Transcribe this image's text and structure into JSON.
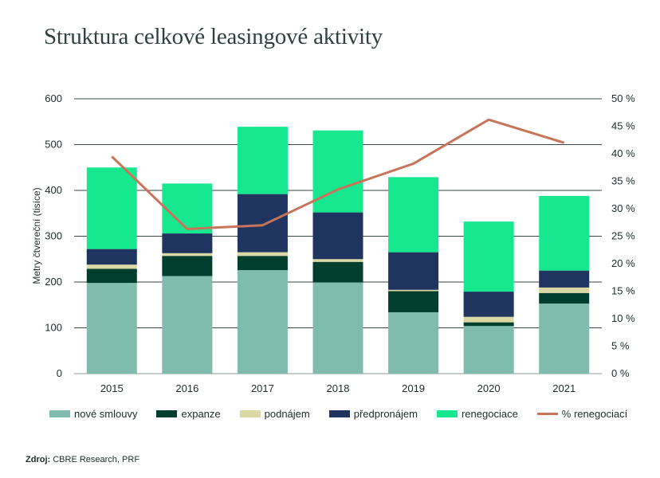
{
  "title": "Struktura celkové leasingové aktivity",
  "source": {
    "label": "Zdroj:",
    "text": "CBRE Research, PRF"
  },
  "chart_data": {
    "type": "bar",
    "stacked": true,
    "title": "Struktura celkové leasingové aktivity",
    "ylabel": "Metry čtvereční (tisíce)",
    "ylim": [
      0,
      600
    ],
    "yticks": [
      "0",
      "100",
      "200",
      "300",
      "400",
      "500",
      "600"
    ],
    "y2lim": [
      0,
      50
    ],
    "y2ticks": [
      "0 %",
      "5 %",
      "10 %",
      "15 %",
      "20 %",
      "25 %",
      "30 %",
      "35 %",
      "40 %",
      "45 %",
      "50 %"
    ],
    "categories": [
      "2015",
      "2016",
      "2017",
      "2018",
      "2019",
      "2020",
      "2021"
    ],
    "series": [
      {
        "name": "nové smlouvy",
        "color": "#80bcad",
        "values": [
          198,
          213,
          226,
          199,
          134,
          104,
          153
        ]
      },
      {
        "name": "expanze",
        "color": "#003f2e",
        "values": [
          31,
          44,
          31,
          45,
          46,
          8,
          23
        ]
      },
      {
        "name": "podnájem",
        "color": "#dcd8a3",
        "values": [
          9,
          6,
          8,
          6,
          3,
          12,
          12
        ]
      },
      {
        "name": "předpronájem",
        "color": "#1f3560",
        "values": [
          34,
          43,
          127,
          102,
          82,
          55,
          37
        ]
      },
      {
        "name": "renegociace",
        "color": "#17e88f",
        "values": [
          178,
          109,
          147,
          179,
          164,
          153,
          163
        ]
      }
    ],
    "line_series": {
      "name": "% renegociací",
      "color": "#c8735a",
      "axis": "right",
      "values": [
        39.5,
        26.3,
        27.0,
        33.5,
        38.2,
        46.2,
        42.0
      ]
    },
    "grid": true,
    "legend_position": "bottom"
  }
}
